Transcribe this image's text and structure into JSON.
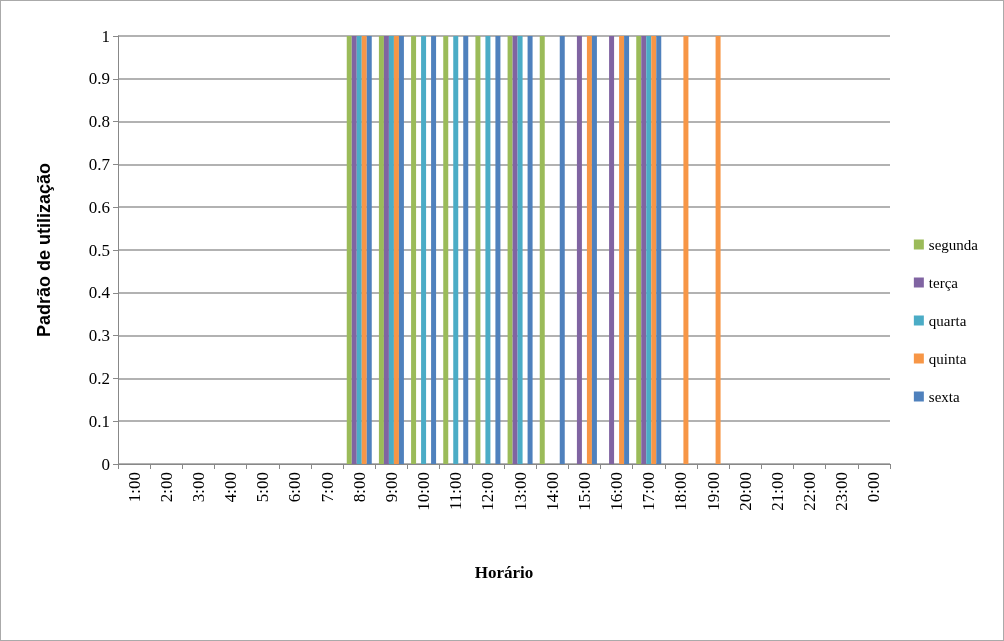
{
  "chart_data": {
    "type": "bar",
    "xlabel": "Horário",
    "ylabel": "Padrão de utilização",
    "categories": [
      "1:00",
      "2:00",
      "3:00",
      "4:00",
      "5:00",
      "6:00",
      "7:00",
      "8:00",
      "9:00",
      "10:00",
      "11:00",
      "12:00",
      "13:00",
      "14:00",
      "15:00",
      "16:00",
      "17:00",
      "18:00",
      "19:00",
      "20:00",
      "21:00",
      "22:00",
      "23:00",
      "0:00"
    ],
    "series": [
      {
        "name": "segunda",
        "color": "#9bbb59",
        "values": [
          0,
          0,
          0,
          0,
          0,
          0,
          0,
          1,
          1,
          1,
          1,
          1,
          1,
          1,
          0,
          0,
          1,
          0,
          0,
          0,
          0,
          0,
          0,
          0
        ]
      },
      {
        "name": "terça",
        "color": "#8064a2",
        "values": [
          0,
          0,
          0,
          0,
          0,
          0,
          0,
          1,
          1,
          0,
          0,
          0,
          1,
          0,
          1,
          1,
          1,
          0,
          0,
          0,
          0,
          0,
          0,
          0
        ]
      },
      {
        "name": "quarta",
        "color": "#4bacc6",
        "values": [
          0,
          0,
          0,
          0,
          0,
          0,
          0,
          1,
          1,
          1,
          1,
          1,
          1,
          0,
          0,
          0,
          1,
          0,
          0,
          0,
          0,
          0,
          0,
          0
        ]
      },
      {
        "name": "quinta",
        "color": "#f79646",
        "values": [
          0,
          0,
          0,
          0,
          0,
          0,
          0,
          1,
          1,
          0,
          0,
          0,
          0,
          0,
          1,
          1,
          1,
          1,
          1,
          0,
          0,
          0,
          0,
          0
        ]
      },
      {
        "name": "sexta",
        "color": "#4f81bd",
        "values": [
          0,
          0,
          0,
          0,
          0,
          0,
          0,
          1,
          1,
          1,
          1,
          1,
          1,
          1,
          1,
          1,
          1,
          0,
          0,
          0,
          0,
          0,
          0,
          0
        ]
      }
    ],
    "ylim": [
      0,
      1
    ],
    "yticks": [
      0,
      0.1,
      0.2,
      0.3,
      0.4,
      0.5,
      0.6,
      0.7,
      0.8,
      0.9,
      1
    ],
    "grid": "y",
    "legend": "right"
  }
}
